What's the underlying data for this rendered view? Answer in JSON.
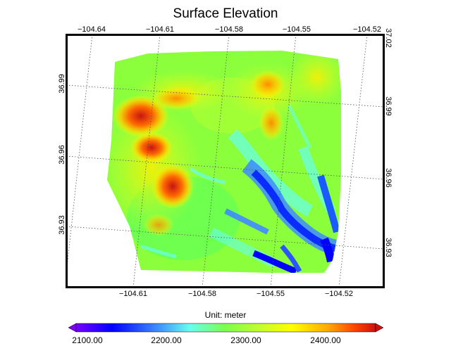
{
  "title": "Surface Elevation",
  "map": {
    "top_lon_ticks": [
      "−104.64",
      "−104.61",
      "−104.58",
      "−104.55",
      "−104.52"
    ],
    "bottom_lon_ticks": [
      "−104.61",
      "−104.58",
      "−104.55",
      "−104.52"
    ],
    "left_lat_ticks": [
      "36.99",
      "36.96",
      "36.93"
    ],
    "right_lat_ticks": [
      "37.02",
      "36.99",
      "36.96",
      "36.93"
    ]
  },
  "colorbar": {
    "label": "Unit: meter",
    "ticks": [
      "2100.00",
      "2200.00",
      "2300.00",
      "2400.00"
    ],
    "colors": [
      "#7a00ff",
      "#0000ff",
      "#3d8bff",
      "#66ffee",
      "#7dff4a",
      "#c8ff2a",
      "#ffff00",
      "#ffaa00",
      "#ff4400",
      "#d01010"
    ]
  }
}
